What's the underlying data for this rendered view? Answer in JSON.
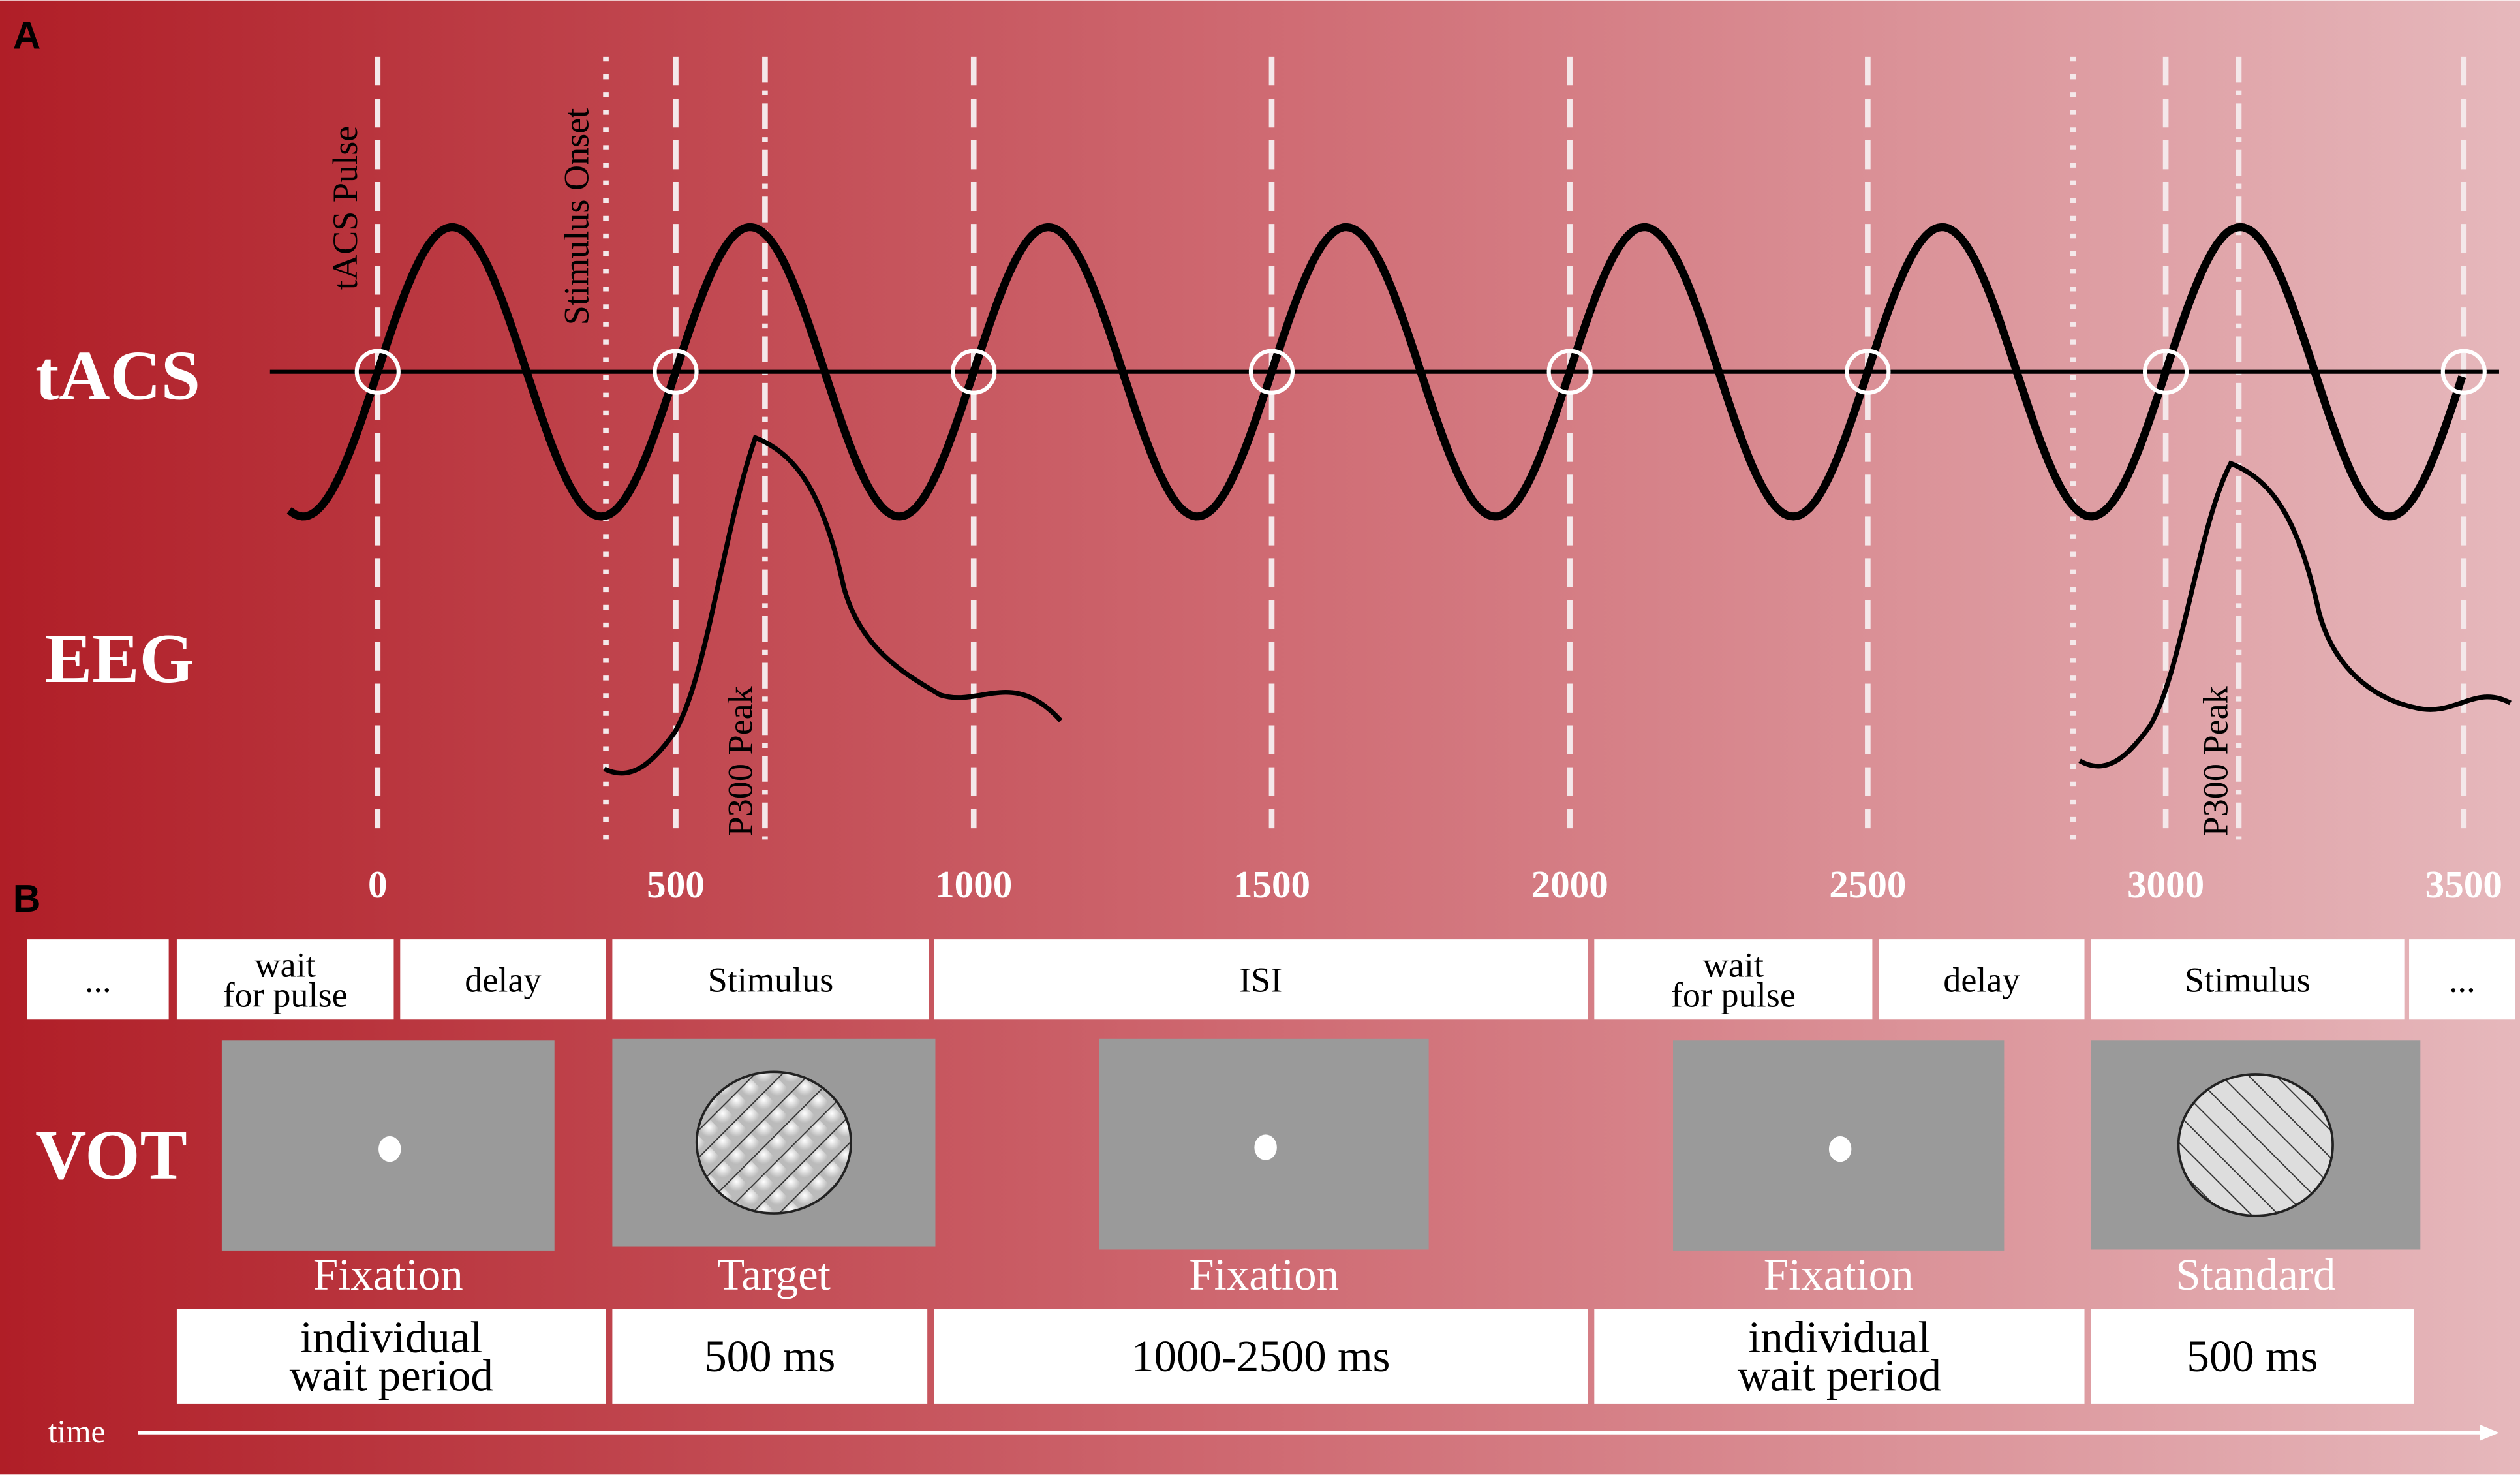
{
  "panel_a": {
    "label": "A",
    "rows": [
      "tACS",
      "EEG"
    ],
    "annotations": {
      "pulse": "tACS Pulse",
      "onset": "Stimulus Onset",
      "p300_first": "P300 Peak",
      "p300_second": "P300 Peak"
    },
    "time_ticks": [
      0,
      500,
      1000,
      1500,
      2000,
      2500,
      3000,
      3500
    ]
  },
  "panel_b": {
    "label": "B",
    "row": "VOT",
    "phases": [
      [
        "..."
      ],
      [
        "wait",
        "for pulse"
      ],
      [
        "delay"
      ],
      [
        "Stimulus"
      ],
      [
        "ISI"
      ],
      [
        "wait",
        "for pulse"
      ],
      [
        "delay"
      ],
      [
        "Stimulus"
      ],
      [
        "..."
      ]
    ],
    "screens": [
      "Fixation",
      "Target",
      "Fixation",
      "Fixation",
      "Standard"
    ],
    "durations": [
      [
        "individual",
        "wait period"
      ],
      [
        "500 ms"
      ],
      [
        "1000-2500 ms"
      ],
      [
        "individual",
        "wait period"
      ],
      [
        "500 ms"
      ]
    ],
    "axis": "time"
  }
}
